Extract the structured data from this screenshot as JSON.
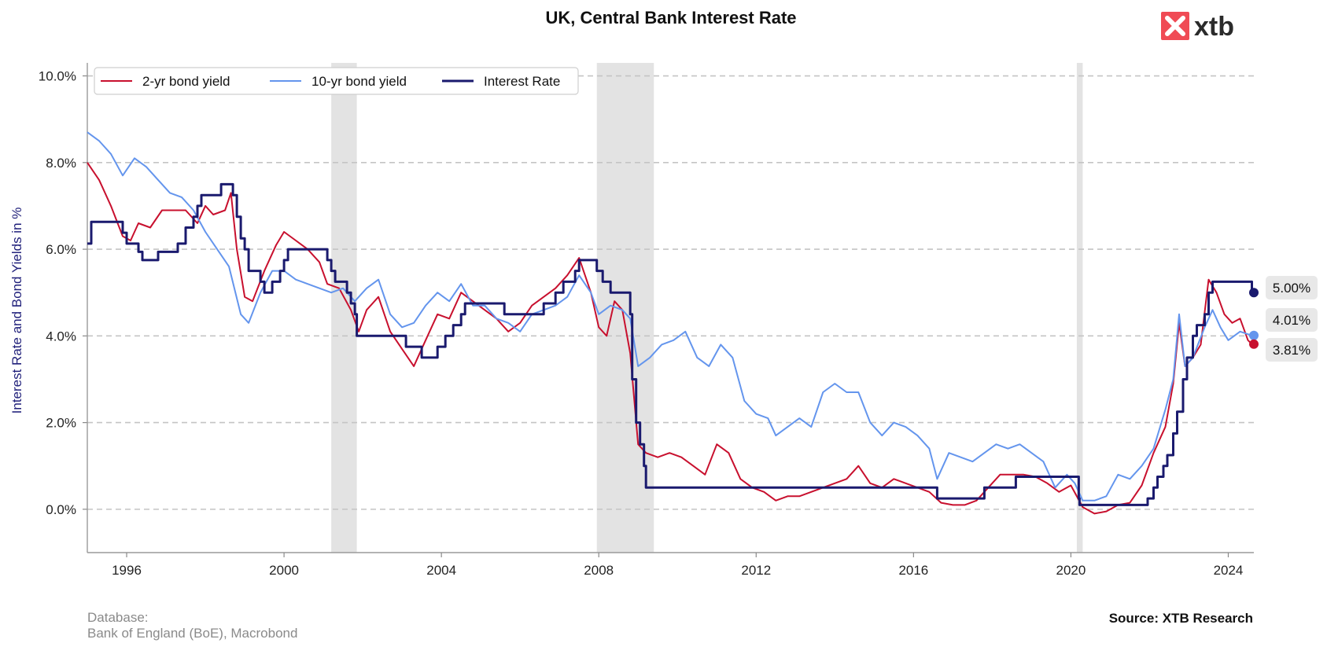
{
  "chart_data": {
    "type": "line",
    "title": "UK, Central Bank Interest Rate",
    "ylabel": "Interest Rate and Bond Yields in %",
    "xlabel": "",
    "xlim": [
      1995.0,
      2024.65
    ],
    "ylim": [
      -1.0,
      10.3
    ],
    "x_ticks": [
      1996,
      2000,
      2004,
      2008,
      2012,
      2016,
      2020,
      2024
    ],
    "y_ticks": [
      0,
      2,
      4,
      6,
      8,
      10
    ],
    "y_tick_labels": [
      "0.0%",
      "2.0%",
      "4.0%",
      "6.0%",
      "8.0%",
      "10.0%"
    ],
    "grid": "horizontal dashed",
    "legend_position": "top-left",
    "shaded_periods": [
      [
        2001.2,
        2001.85
      ],
      [
        2007.95,
        2009.4
      ],
      [
        2020.15,
        2020.3
      ]
    ],
    "series": [
      {
        "name": "2-yr bond yield",
        "color": "#c8102e",
        "kind": "line",
        "points": [
          [
            1995.0,
            8.0
          ],
          [
            1995.3,
            7.6
          ],
          [
            1995.6,
            7.0
          ],
          [
            1995.9,
            6.3
          ],
          [
            1996.1,
            6.2
          ],
          [
            1996.3,
            6.6
          ],
          [
            1996.6,
            6.5
          ],
          [
            1996.9,
            6.9
          ],
          [
            1997.2,
            6.9
          ],
          [
            1997.5,
            6.9
          ],
          [
            1997.8,
            6.6
          ],
          [
            1998.0,
            7.0
          ],
          [
            1998.2,
            6.8
          ],
          [
            1998.5,
            6.9
          ],
          [
            1998.65,
            7.3
          ],
          [
            1998.8,
            6.0
          ],
          [
            1999.0,
            4.9
          ],
          [
            1999.2,
            4.8
          ],
          [
            1999.5,
            5.5
          ],
          [
            1999.8,
            6.1
          ],
          [
            2000.0,
            6.4
          ],
          [
            2000.3,
            6.2
          ],
          [
            2000.6,
            6.0
          ],
          [
            2000.9,
            5.7
          ],
          [
            2001.1,
            5.2
          ],
          [
            2001.4,
            5.1
          ],
          [
            2001.7,
            4.6
          ],
          [
            2001.9,
            4.1
          ],
          [
            2002.1,
            4.6
          ],
          [
            2002.4,
            4.9
          ],
          [
            2002.7,
            4.1
          ],
          [
            2003.0,
            3.7
          ],
          [
            2003.3,
            3.3
          ],
          [
            2003.6,
            3.9
          ],
          [
            2003.9,
            4.5
          ],
          [
            2004.2,
            4.4
          ],
          [
            2004.5,
            5.0
          ],
          [
            2004.8,
            4.8
          ],
          [
            2005.1,
            4.6
          ],
          [
            2005.4,
            4.4
          ],
          [
            2005.7,
            4.1
          ],
          [
            2006.0,
            4.3
          ],
          [
            2006.3,
            4.7
          ],
          [
            2006.6,
            4.9
          ],
          [
            2006.9,
            5.1
          ],
          [
            2007.2,
            5.4
          ],
          [
            2007.5,
            5.8
          ],
          [
            2007.8,
            5.0
          ],
          [
            2008.0,
            4.2
          ],
          [
            2008.2,
            4.0
          ],
          [
            2008.4,
            4.8
          ],
          [
            2008.6,
            4.6
          ],
          [
            2008.8,
            3.6
          ],
          [
            2009.0,
            1.5
          ],
          [
            2009.2,
            1.3
          ],
          [
            2009.5,
            1.2
          ],
          [
            2009.8,
            1.3
          ],
          [
            2010.1,
            1.2
          ],
          [
            2010.4,
            1.0
          ],
          [
            2010.7,
            0.8
          ],
          [
            2011.0,
            1.5
          ],
          [
            2011.3,
            1.3
          ],
          [
            2011.6,
            0.7
          ],
          [
            2011.9,
            0.5
          ],
          [
            2012.2,
            0.4
          ],
          [
            2012.5,
            0.2
          ],
          [
            2012.8,
            0.3
          ],
          [
            2013.1,
            0.3
          ],
          [
            2013.4,
            0.4
          ],
          [
            2013.7,
            0.5
          ],
          [
            2014.0,
            0.6
          ],
          [
            2014.3,
            0.7
          ],
          [
            2014.6,
            1.0
          ],
          [
            2014.9,
            0.6
          ],
          [
            2015.2,
            0.5
          ],
          [
            2015.5,
            0.7
          ],
          [
            2015.8,
            0.6
          ],
          [
            2016.1,
            0.5
          ],
          [
            2016.4,
            0.4
          ],
          [
            2016.7,
            0.15
          ],
          [
            2017.0,
            0.1
          ],
          [
            2017.3,
            0.1
          ],
          [
            2017.6,
            0.2
          ],
          [
            2017.9,
            0.5
          ],
          [
            2018.2,
            0.8
          ],
          [
            2018.5,
            0.8
          ],
          [
            2018.8,
            0.8
          ],
          [
            2019.1,
            0.75
          ],
          [
            2019.4,
            0.6
          ],
          [
            2019.7,
            0.4
          ],
          [
            2020.0,
            0.55
          ],
          [
            2020.3,
            0.05
          ],
          [
            2020.6,
            -0.1
          ],
          [
            2020.9,
            -0.05
          ],
          [
            2021.2,
            0.1
          ],
          [
            2021.5,
            0.15
          ],
          [
            2021.8,
            0.55
          ],
          [
            2022.1,
            1.3
          ],
          [
            2022.4,
            1.9
          ],
          [
            2022.6,
            2.9
          ],
          [
            2022.75,
            4.3
          ],
          [
            2022.9,
            3.3
          ],
          [
            2023.1,
            3.5
          ],
          [
            2023.3,
            3.8
          ],
          [
            2023.5,
            5.3
          ],
          [
            2023.7,
            5.0
          ],
          [
            2023.9,
            4.5
          ],
          [
            2024.1,
            4.3
          ],
          [
            2024.3,
            4.4
          ],
          [
            2024.5,
            3.9
          ],
          [
            2024.6,
            3.81
          ]
        ]
      },
      {
        "name": "10-yr bond yield",
        "color": "#6495ed",
        "kind": "line",
        "points": [
          [
            1995.0,
            8.7
          ],
          [
            1995.3,
            8.5
          ],
          [
            1995.6,
            8.2
          ],
          [
            1995.9,
            7.7
          ],
          [
            1996.2,
            8.1
          ],
          [
            1996.5,
            7.9
          ],
          [
            1996.8,
            7.6
          ],
          [
            1997.1,
            7.3
          ],
          [
            1997.4,
            7.2
          ],
          [
            1997.7,
            6.9
          ],
          [
            1998.0,
            6.4
          ],
          [
            1998.3,
            6.0
          ],
          [
            1998.6,
            5.6
          ],
          [
            1998.9,
            4.5
          ],
          [
            1999.1,
            4.3
          ],
          [
            1999.4,
            5.0
          ],
          [
            1999.7,
            5.5
          ],
          [
            2000.0,
            5.5
          ],
          [
            2000.3,
            5.3
          ],
          [
            2000.6,
            5.2
          ],
          [
            2000.9,
            5.1
          ],
          [
            2001.2,
            5.0
          ],
          [
            2001.5,
            5.1
          ],
          [
            2001.8,
            4.8
          ],
          [
            2002.1,
            5.1
          ],
          [
            2002.4,
            5.3
          ],
          [
            2002.7,
            4.5
          ],
          [
            2003.0,
            4.2
          ],
          [
            2003.3,
            4.3
          ],
          [
            2003.6,
            4.7
          ],
          [
            2003.9,
            5.0
          ],
          [
            2004.2,
            4.8
          ],
          [
            2004.5,
            5.2
          ],
          [
            2004.8,
            4.7
          ],
          [
            2005.1,
            4.7
          ],
          [
            2005.4,
            4.4
          ],
          [
            2005.7,
            4.3
          ],
          [
            2006.0,
            4.1
          ],
          [
            2006.3,
            4.5
          ],
          [
            2006.6,
            4.6
          ],
          [
            2006.9,
            4.7
          ],
          [
            2007.2,
            4.9
          ],
          [
            2007.5,
            5.4
          ],
          [
            2007.8,
            5.0
          ],
          [
            2008.0,
            4.5
          ],
          [
            2008.3,
            4.7
          ],
          [
            2008.6,
            4.6
          ],
          [
            2008.8,
            4.4
          ],
          [
            2009.0,
            3.3
          ],
          [
            2009.3,
            3.5
          ],
          [
            2009.6,
            3.8
          ],
          [
            2009.9,
            3.9
          ],
          [
            2010.2,
            4.1
          ],
          [
            2010.5,
            3.5
          ],
          [
            2010.8,
            3.3
          ],
          [
            2011.1,
            3.8
          ],
          [
            2011.4,
            3.5
          ],
          [
            2011.7,
            2.5
          ],
          [
            2012.0,
            2.2
          ],
          [
            2012.3,
            2.1
          ],
          [
            2012.5,
            1.7
          ],
          [
            2012.8,
            1.9
          ],
          [
            2013.1,
            2.1
          ],
          [
            2013.4,
            1.9
          ],
          [
            2013.7,
            2.7
          ],
          [
            2014.0,
            2.9
          ],
          [
            2014.3,
            2.7
          ],
          [
            2014.6,
            2.7
          ],
          [
            2014.9,
            2.0
          ],
          [
            2015.2,
            1.7
          ],
          [
            2015.5,
            2.0
          ],
          [
            2015.8,
            1.9
          ],
          [
            2016.1,
            1.7
          ],
          [
            2016.4,
            1.4
          ],
          [
            2016.6,
            0.7
          ],
          [
            2016.9,
            1.3
          ],
          [
            2017.2,
            1.2
          ],
          [
            2017.5,
            1.1
          ],
          [
            2017.8,
            1.3
          ],
          [
            2018.1,
            1.5
          ],
          [
            2018.4,
            1.4
          ],
          [
            2018.7,
            1.5
          ],
          [
            2019.0,
            1.3
          ],
          [
            2019.3,
            1.1
          ],
          [
            2019.6,
            0.5
          ],
          [
            2019.9,
            0.8
          ],
          [
            2020.1,
            0.6
          ],
          [
            2020.3,
            0.2
          ],
          [
            2020.6,
            0.2
          ],
          [
            2020.9,
            0.3
          ],
          [
            2021.2,
            0.8
          ],
          [
            2021.5,
            0.7
          ],
          [
            2021.8,
            1.0
          ],
          [
            2022.1,
            1.4
          ],
          [
            2022.4,
            2.3
          ],
          [
            2022.6,
            3.0
          ],
          [
            2022.75,
            4.5
          ],
          [
            2022.9,
            3.3
          ],
          [
            2023.1,
            3.5
          ],
          [
            2023.4,
            4.2
          ],
          [
            2023.6,
            4.6
          ],
          [
            2023.8,
            4.2
          ],
          [
            2024.0,
            3.9
          ],
          [
            2024.3,
            4.1
          ],
          [
            2024.6,
            4.01
          ]
        ]
      },
      {
        "name": "Interest Rate",
        "color": "#1a1a6e",
        "kind": "step",
        "points": [
          [
            1995.0,
            6.13
          ],
          [
            1995.1,
            6.63
          ],
          [
            1995.9,
            6.38
          ],
          [
            1996.0,
            6.13
          ],
          [
            1996.3,
            5.94
          ],
          [
            1996.4,
            5.75
          ],
          [
            1996.8,
            5.94
          ],
          [
            1997.3,
            6.13
          ],
          [
            1997.5,
            6.5
          ],
          [
            1997.7,
            6.75
          ],
          [
            1997.8,
            7.0
          ],
          [
            1997.9,
            7.25
          ],
          [
            1998.4,
            7.5
          ],
          [
            1998.7,
            7.25
          ],
          [
            1998.8,
            6.75
          ],
          [
            1998.9,
            6.25
          ],
          [
            1999.0,
            6.0
          ],
          [
            1999.1,
            5.5
          ],
          [
            1999.4,
            5.25
          ],
          [
            1999.5,
            5.0
          ],
          [
            1999.7,
            5.25
          ],
          [
            1999.9,
            5.5
          ],
          [
            2000.0,
            5.75
          ],
          [
            2000.1,
            6.0
          ],
          [
            2001.1,
            5.75
          ],
          [
            2001.2,
            5.5
          ],
          [
            2001.3,
            5.25
          ],
          [
            2001.6,
            5.0
          ],
          [
            2001.7,
            4.75
          ],
          [
            2001.8,
            4.5
          ],
          [
            2001.85,
            4.0
          ],
          [
            2003.1,
            3.75
          ],
          [
            2003.5,
            3.5
          ],
          [
            2003.9,
            3.75
          ],
          [
            2004.1,
            4.0
          ],
          [
            2004.3,
            4.25
          ],
          [
            2004.5,
            4.5
          ],
          [
            2004.6,
            4.75
          ],
          [
            2005.6,
            4.5
          ],
          [
            2006.6,
            4.75
          ],
          [
            2006.9,
            5.0
          ],
          [
            2007.1,
            5.25
          ],
          [
            2007.4,
            5.5
          ],
          [
            2007.5,
            5.75
          ],
          [
            2007.95,
            5.5
          ],
          [
            2008.1,
            5.25
          ],
          [
            2008.3,
            5.0
          ],
          [
            2008.8,
            4.5
          ],
          [
            2008.85,
            3.0
          ],
          [
            2008.95,
            2.0
          ],
          [
            2009.05,
            1.5
          ],
          [
            2009.15,
            1.0
          ],
          [
            2009.2,
            0.5
          ],
          [
            2016.6,
            0.25
          ],
          [
            2017.8,
            0.5
          ],
          [
            2018.6,
            0.75
          ],
          [
            2020.2,
            0.25
          ],
          [
            2020.22,
            0.1
          ],
          [
            2021.95,
            0.25
          ],
          [
            2022.1,
            0.5
          ],
          [
            2022.2,
            0.75
          ],
          [
            2022.35,
            1.0
          ],
          [
            2022.45,
            1.25
          ],
          [
            2022.6,
            1.75
          ],
          [
            2022.7,
            2.25
          ],
          [
            2022.85,
            3.0
          ],
          [
            2022.95,
            3.5
          ],
          [
            2023.1,
            4.0
          ],
          [
            2023.2,
            4.25
          ],
          [
            2023.4,
            4.5
          ],
          [
            2023.5,
            5.0
          ],
          [
            2023.6,
            5.25
          ],
          [
            2024.6,
            5.25
          ],
          [
            2024.6,
            5.0
          ]
        ]
      }
    ],
    "end_markers": [
      {
        "label": "5.00%",
        "value": 5.0,
        "color": "#1a1a6e"
      },
      {
        "label": "4.01%",
        "value": 4.01,
        "color": "#6495ed"
      },
      {
        "label": "3.81%",
        "value": 3.81,
        "color": "#c8102e"
      }
    ]
  },
  "footer": {
    "database_label": "Database:",
    "database_sources": "Bank of England (BoE), Macrobond",
    "source": "Source: XTB Research"
  },
  "logo": {
    "text": "xtb",
    "mark_color": "#f04b55"
  }
}
